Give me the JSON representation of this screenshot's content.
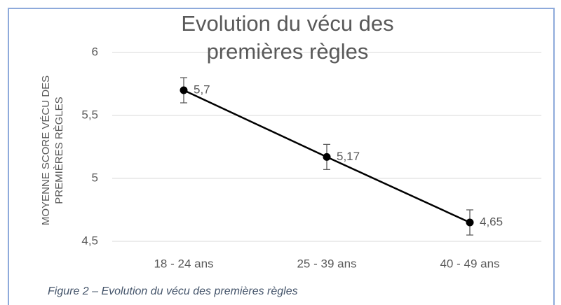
{
  "chart_data": {
    "type": "line",
    "title": "Evolution du vécu des premières règles",
    "y_label": "MOYENNE SCORE VÉCU DES PREMIÈRES RÈGLES",
    "caption": "Figure 2 – Evolution du vécu des premières règles",
    "categories": [
      "18 - 24 ans",
      "25 - 39 ans",
      "40 - 49 ans"
    ],
    "series": [
      {
        "name": "Moyenne",
        "color": "#000000",
        "values": [
          5.7,
          5.17,
          4.65
        ],
        "value_labels": [
          "5,7",
          "5,17",
          "4,65"
        ],
        "errors": [
          0.1,
          0.1,
          0.1
        ]
      }
    ],
    "ylim": [
      4.5,
      6
    ],
    "yticks": [
      {
        "value": 4.5,
        "label": "4,5"
      },
      5,
      {
        "value": 5.5,
        "label": "5,5"
      },
      6
    ],
    "grid": true
  }
}
